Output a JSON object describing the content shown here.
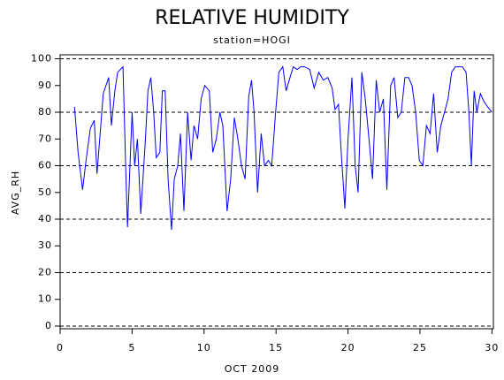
{
  "chart_data": {
    "type": "line",
    "title": "RELATIVE HUMIDITY",
    "subtitle": "station=HOGI",
    "xlabel": "OCT 2009",
    "ylabel": "AVG_RH",
    "x": [
      1.0,
      1.25,
      1.56,
      1.8,
      2.1,
      2.37,
      2.56,
      3.0,
      3.37,
      3.56,
      3.8,
      4.0,
      4.37,
      4.55,
      4.68,
      5.0,
      5.18,
      5.37,
      5.6,
      5.93,
      6.1,
      6.3,
      6.5,
      6.68,
      6.93,
      7.1,
      7.3,
      7.5,
      7.74,
      7.93,
      8.17,
      8.36,
      8.6,
      8.86,
      9.1,
      9.3,
      9.55,
      9.8,
      10.05,
      10.36,
      10.6,
      10.85,
      11.1,
      11.3,
      11.6,
      11.85,
      12.1,
      12.35,
      12.6,
      12.85,
      13.1,
      13.3,
      13.47,
      13.72,
      13.97,
      14.2,
      14.47,
      14.7,
      14.97,
      15.2,
      15.47,
      15.7,
      15.97,
      16.2,
      16.47,
      16.7,
      16.97,
      17.34,
      17.65,
      17.97,
      18.28,
      18.6,
      18.9,
      19.1,
      19.34,
      19.53,
      19.78,
      20.0,
      20.27,
      20.5,
      20.7,
      20.96,
      21.2,
      21.46,
      21.7,
      21.96,
      22.2,
      22.46,
      22.7,
      22.96,
      23.2,
      23.46,
      23.7,
      23.95,
      24.2,
      24.45,
      24.7,
      24.95,
      25.2,
      25.45,
      25.7,
      25.95,
      26.2,
      26.45,
      26.7,
      26.95,
      27.2,
      27.45,
      27.7,
      27.95,
      28.2,
      28.4,
      28.57,
      28.76,
      28.95,
      29.2,
      29.45,
      29.7,
      30.0
    ],
    "series": [
      {
        "name": "AVG_RH",
        "color": "#0000ff",
        "values": [
          82,
          65,
          51,
          62,
          74,
          77,
          57,
          87,
          93,
          75,
          88,
          95,
          97,
          60,
          37,
          80,
          60,
          70,
          42,
          70,
          88,
          93,
          80,
          63,
          65,
          88,
          88,
          55,
          36,
          55,
          60,
          72,
          43,
          80,
          62,
          75,
          70,
          85,
          90,
          88,
          65,
          70,
          80,
          75,
          43,
          55,
          78,
          70,
          60,
          55,
          86,
          92,
          80,
          50,
          72,
          60,
          62,
          60,
          80,
          95,
          97,
          88,
          93,
          97,
          96,
          97,
          97,
          96,
          89,
          95,
          92,
          93,
          89,
          81,
          83,
          65,
          44,
          70,
          93,
          60,
          50,
          95,
          85,
          70,
          55,
          92,
          80,
          85,
          51,
          90,
          93,
          78,
          80,
          93,
          93,
          90,
          80,
          62,
          60,
          75,
          72,
          87,
          65,
          75,
          80,
          85,
          95,
          97,
          97,
          97,
          95,
          80,
          60,
          88,
          80,
          87,
          84,
          82,
          80
        ]
      }
    ],
    "xlim": [
      0,
      30.1
    ],
    "xticks": [
      0,
      5,
      10,
      15,
      20,
      25,
      30
    ],
    "ylim": [
      -1,
      101.5
    ],
    "yticks": [
      0,
      10,
      20,
      30,
      40,
      50,
      60,
      70,
      80,
      90,
      100
    ],
    "ygrid": [
      0,
      20,
      40,
      60,
      80,
      100
    ]
  }
}
